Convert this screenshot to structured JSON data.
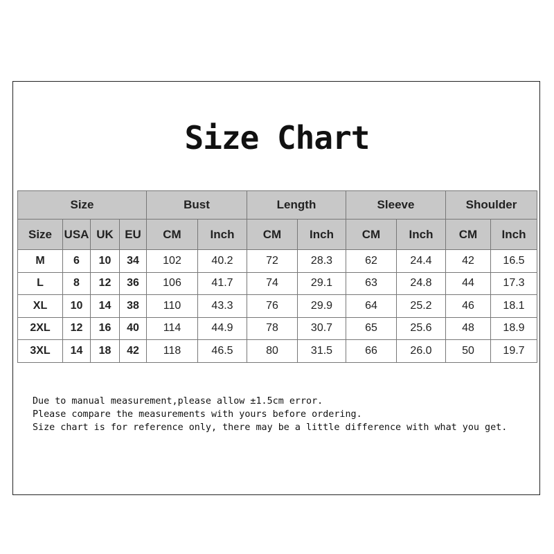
{
  "title": "Size Chart",
  "groups": [
    "Size",
    "Bust",
    "Length",
    "Sleeve",
    "Shoulder"
  ],
  "subheaders": [
    "Size",
    "USA",
    "UK",
    "EU",
    "CM",
    "Inch",
    "CM",
    "Inch",
    "CM",
    "Inch",
    "CM",
    "Inch"
  ],
  "rows": [
    [
      "M",
      "6",
      "10",
      "34",
      "102",
      "40.2",
      "72",
      "28.3",
      "62",
      "24.4",
      "42",
      "16.5"
    ],
    [
      "L",
      "8",
      "12",
      "36",
      "106",
      "41.7",
      "74",
      "29.1",
      "63",
      "24.8",
      "44",
      "17.3"
    ],
    [
      "XL",
      "10",
      "14",
      "38",
      "110",
      "43.3",
      "76",
      "29.9",
      "64",
      "25.2",
      "46",
      "18.1"
    ],
    [
      "2XL",
      "12",
      "16",
      "40",
      "114",
      "44.9",
      "78",
      "30.7",
      "65",
      "25.6",
      "48",
      "18.9"
    ],
    [
      "3XL",
      "14",
      "18",
      "42",
      "118",
      "46.5",
      "80",
      "31.5",
      "66",
      "26.0",
      "50",
      "19.7"
    ]
  ],
  "notes": [
    "Due to manual measurement,please allow ±1.5cm error.",
    "Please compare the measurements with yours before ordering.",
    "Size chart is for reference only, there may be a little difference with what you get."
  ]
}
